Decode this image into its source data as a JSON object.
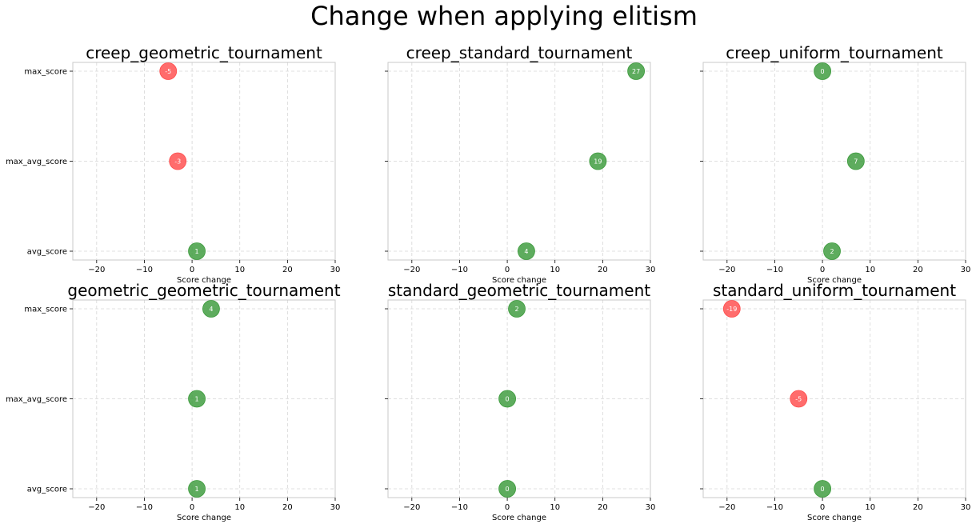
{
  "title": "Change when applying elitism",
  "colors": {
    "positive": "#3a9a3a",
    "negative": "#ff4c4c",
    "grid": "#d6d6d6",
    "spine": "#c8c8c8"
  },
  "chart_data": [
    {
      "type": "scatter",
      "title": "creep_geometric_tournament",
      "xlabel": "Score change",
      "xlim": [
        -25,
        30
      ],
      "xticks": [
        "−20",
        "−10",
        "0",
        "10",
        "20",
        "30"
      ],
      "categories": [
        "max_score",
        "max_avg_score",
        "avg_score"
      ],
      "values": [
        -5,
        -3,
        1
      ],
      "labels": [
        "-5",
        "-3",
        "1"
      ],
      "show_ytick_labels": true,
      "grid": true
    },
    {
      "type": "scatter",
      "title": "creep_standard_tournament",
      "xlabel": "Score change",
      "xlim": [
        -25,
        30
      ],
      "xticks": [
        "−20",
        "−10",
        "0",
        "10",
        "20",
        "30"
      ],
      "categories": [
        "max_score",
        "max_avg_score",
        "avg_score"
      ],
      "values": [
        27,
        19,
        4
      ],
      "labels": [
        "27",
        "19",
        "4"
      ],
      "show_ytick_labels": false,
      "grid": true
    },
    {
      "type": "scatter",
      "title": "creep_uniform_tournament",
      "xlabel": "Score change",
      "xlim": [
        -25,
        30
      ],
      "xticks": [
        "−20",
        "−10",
        "0",
        "10",
        "20",
        "30"
      ],
      "categories": [
        "max_score",
        "max_avg_score",
        "avg_score"
      ],
      "values": [
        0,
        7,
        2
      ],
      "labels": [
        "0",
        "7",
        "2"
      ],
      "show_ytick_labels": false,
      "grid": true
    },
    {
      "type": "scatter",
      "title": "geometric_geometric_tournament",
      "xlabel": "Score change",
      "xlim": [
        -25,
        30
      ],
      "xticks": [
        "−20",
        "−10",
        "0",
        "10",
        "20",
        "30"
      ],
      "categories": [
        "max_score",
        "max_avg_score",
        "avg_score"
      ],
      "values": [
        4,
        1,
        1
      ],
      "labels": [
        "4",
        "1",
        "1"
      ],
      "show_ytick_labels": true,
      "grid": true
    },
    {
      "type": "scatter",
      "title": "standard_geometric_tournament",
      "xlabel": "Score change",
      "xlim": [
        -25,
        30
      ],
      "xticks": [
        "−20",
        "−10",
        "0",
        "10",
        "20",
        "30"
      ],
      "categories": [
        "max_score",
        "max_avg_score",
        "avg_score"
      ],
      "values": [
        2,
        0,
        0
      ],
      "labels": [
        "2",
        "0",
        "0"
      ],
      "show_ytick_labels": false,
      "grid": true
    },
    {
      "type": "scatter",
      "title": "standard_uniform_tournament",
      "xlabel": "Score change",
      "xlim": [
        -25,
        30
      ],
      "xticks": [
        "−20",
        "−10",
        "0",
        "10",
        "20",
        "30"
      ],
      "categories": [
        "max_score",
        "max_avg_score",
        "avg_score"
      ],
      "values": [
        -19,
        -5,
        0
      ],
      "labels": [
        "-19",
        "-5",
        "0"
      ],
      "show_ytick_labels": false,
      "grid": true
    }
  ]
}
